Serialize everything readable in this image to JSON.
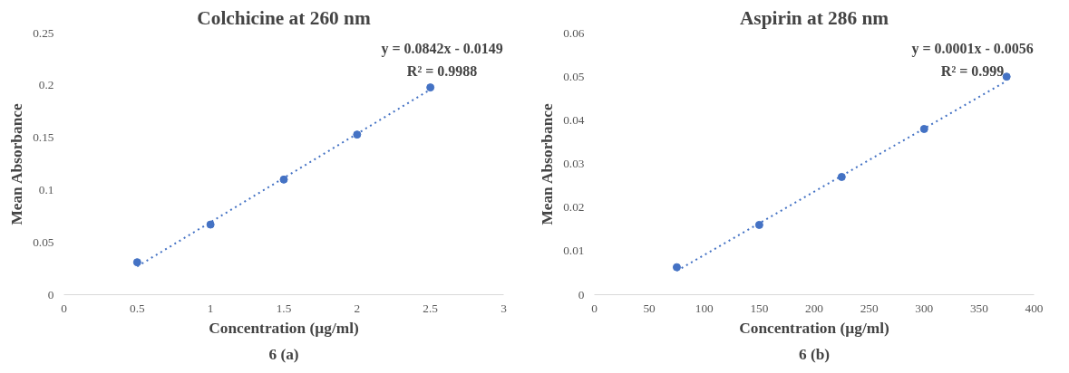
{
  "chart_data": [
    {
      "type": "scatter",
      "title": "Colchicine at 260 nm",
      "xlabel": "Concentration (µg/ml)",
      "ylabel": "Mean Absorbance",
      "xlim": [
        0,
        3
      ],
      "xticks": [
        0,
        0.5,
        1,
        1.5,
        2,
        2.5,
        3
      ],
      "ylim": [
        0,
        0.25
      ],
      "yticks": [
        0,
        0.05,
        0.1,
        0.15,
        0.2,
        0.25
      ],
      "grid": false,
      "series": [
        {
          "marker": "circle",
          "color": "#4472c4",
          "x": [
            0.5,
            1,
            1.5,
            2,
            2.5
          ],
          "values": [
            0.031,
            0.067,
            0.11,
            0.153,
            0.198
          ]
        },
        {
          "type": "line",
          "color": "#4472c4",
          "line_style": "dotted",
          "x": [
            0.5,
            2.5
          ],
          "values": [
            0.027,
            0.196
          ]
        }
      ],
      "annotations": [
        "y = 0.0842x - 0.0149",
        "R² = 0.9988",
        "6 (a)"
      ]
    },
    {
      "type": "scatter",
      "title": "Aspirin at 286 nm",
      "xlabel": "Concentration (µg/ml)",
      "ylabel": "Mean Absorbance",
      "xlim": [
        0,
        400
      ],
      "xticks": [
        0,
        50,
        100,
        150,
        200,
        250,
        300,
        350,
        400
      ],
      "ylim": [
        0,
        0.06
      ],
      "yticks": [
        0,
        0.01,
        0.02,
        0.03,
        0.04,
        0.05,
        0.06
      ],
      "grid": false,
      "series": [
        {
          "marker": "circle",
          "color": "#4472c4",
          "x": [
            75,
            150,
            225,
            300,
            375
          ],
          "values": [
            0.0063,
            0.016,
            0.027,
            0.038,
            0.05
          ]
        },
        {
          "type": "line",
          "color": "#4472c4",
          "line_style": "dotted",
          "x": [
            75,
            375
          ],
          "values": [
            0.0055,
            0.049
          ]
        }
      ],
      "annotations": [
        "y = 0.0001x - 0.0056",
        "R² = 0.999",
        "6 (b)"
      ]
    }
  ]
}
